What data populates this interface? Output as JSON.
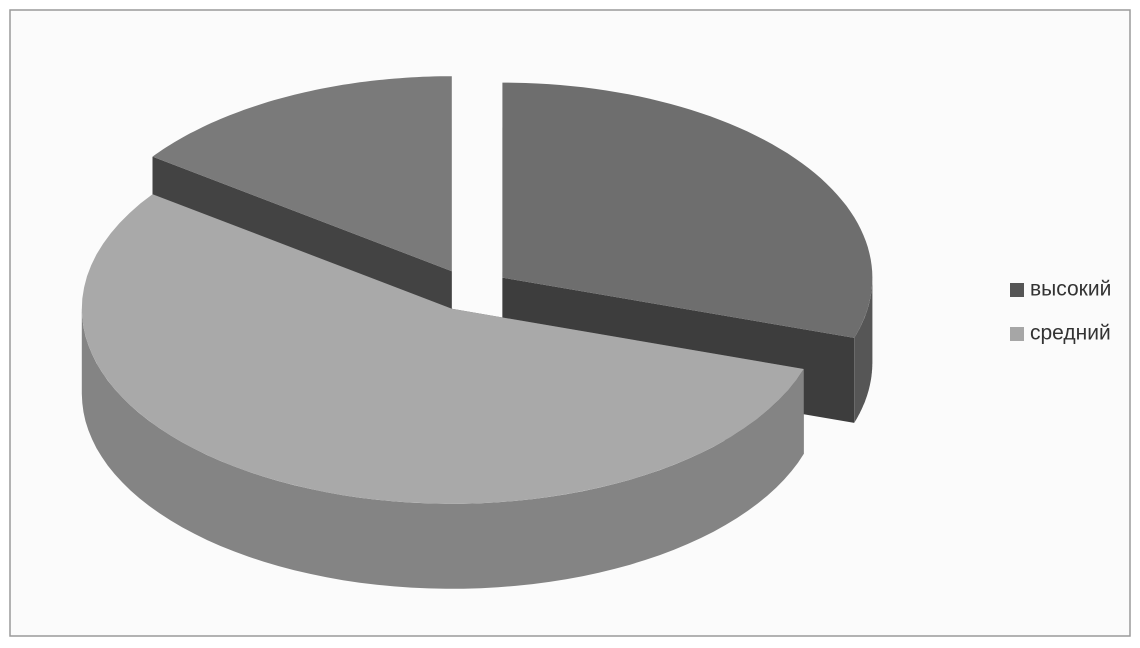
{
  "chart_data": {
    "type": "pie3d",
    "categories": [
      "высокий",
      "средний",
      null
    ],
    "values": [
      30,
      55,
      15
    ],
    "colors": [
      "#6e6e6e",
      "#a9a9a9",
      "#7a7a7a"
    ],
    "legend_colors": [
      "#555555",
      "#a6a6a6"
    ],
    "legend": "right"
  }
}
